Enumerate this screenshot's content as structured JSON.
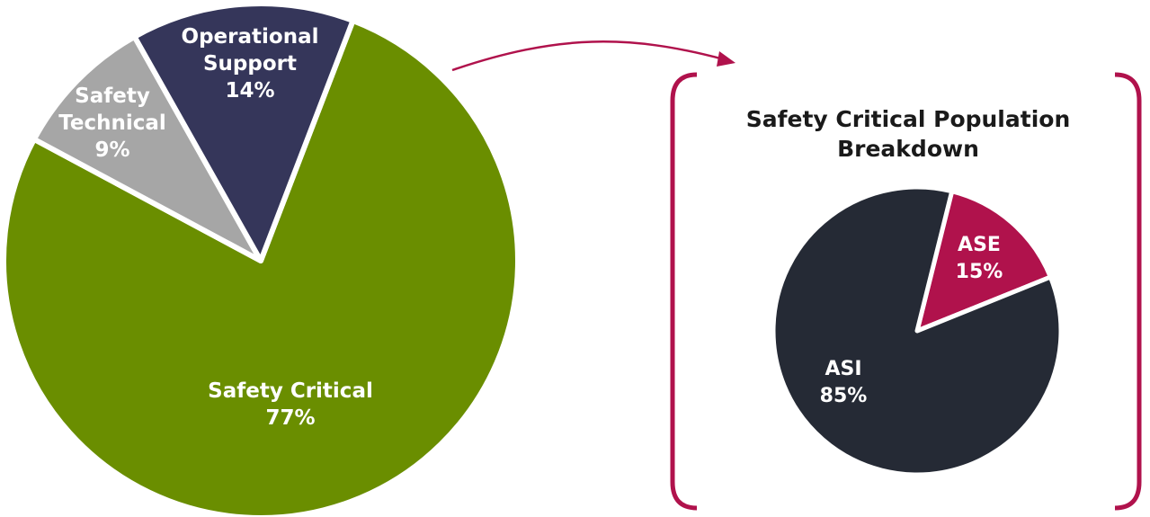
{
  "chart_data": [
    {
      "type": "pie",
      "title": "",
      "slices": [
        {
          "label": [
            "Safety Critical"
          ],
          "value": 77,
          "value_label": "77%",
          "color": "#6a8e00"
        },
        {
          "label": [
            "Safety",
            "Technical"
          ],
          "value": 9,
          "value_label": "9%",
          "color": "#a6a6a6"
        },
        {
          "label": [
            "Operational",
            "Support"
          ],
          "value": 14,
          "value_label": "14%",
          "color": "#35365a"
        }
      ]
    },
    {
      "type": "pie",
      "title": [
        "Safety Critical Population",
        "Breakdown"
      ],
      "slices": [
        {
          "label": [
            "ASE"
          ],
          "value": 15,
          "value_label": "15%",
          "color": "#b0124c"
        },
        {
          "label": [
            "ASI"
          ],
          "value": 85,
          "value_label": "85%",
          "color": "#252a35"
        }
      ]
    }
  ],
  "colors": {
    "bracket": "#b0124c",
    "arrow": "#b0124c",
    "separator": "#ffffff"
  }
}
